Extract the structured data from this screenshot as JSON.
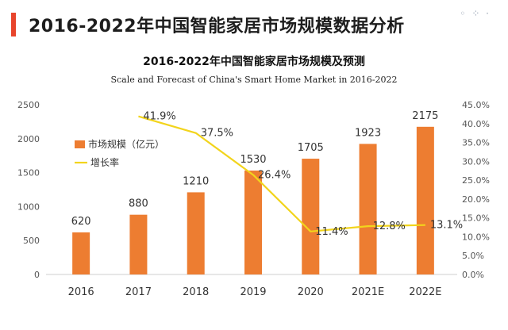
{
  "header": {
    "title": "2016-2022年中国智能家居市场规模数据分析",
    "dots": "◦ ⁘ ·"
  },
  "chart_data": {
    "type": "bar",
    "title": "2016-2022年中国智能家居市场规模及预测",
    "subtitle": "Scale and Forecast of China's Smart Home Market in 2016-2022",
    "categories": [
      "2016",
      "2017",
      "2018",
      "2019",
      "2020",
      "2021E",
      "2022E"
    ],
    "series": [
      {
        "name": "市场规模（亿元）",
        "kind": "bar",
        "axis": "left",
        "color": "#ed7d31",
        "values": [
          620,
          880,
          1210,
          1530,
          1705,
          1923,
          2175
        ],
        "labels": [
          "620",
          "880",
          "1210",
          "1530",
          "1705",
          "1923",
          "2175"
        ]
      },
      {
        "name": "增长率",
        "kind": "line",
        "axis": "right",
        "color": "#f2d41c",
        "values": [
          null,
          41.9,
          37.5,
          26.4,
          11.4,
          12.8,
          13.1
        ],
        "labels": [
          "",
          "41.9%",
          "37.5%",
          "26.4%",
          "11.4%",
          "12.8%",
          "13.1%"
        ]
      }
    ],
    "y_left": {
      "min": 0,
      "max": 2500,
      "ticks": [
        0,
        500,
        1000,
        1500,
        2000,
        2500
      ],
      "tick_labels": [
        "0",
        "500",
        "1000",
        "1500",
        "2000",
        "2500"
      ]
    },
    "y_right": {
      "min": 0,
      "max": 45,
      "ticks": [
        0,
        5,
        10,
        15,
        20,
        25,
        30,
        35,
        40,
        45
      ],
      "tick_labels": [
        "0.0%",
        "5.0%",
        "10.0%",
        "15.0%",
        "20.0%",
        "25.0%",
        "30.0%",
        "35.0%",
        "40.0%",
        "45.0%"
      ]
    },
    "legend_position": "upper-left",
    "grid": false
  }
}
